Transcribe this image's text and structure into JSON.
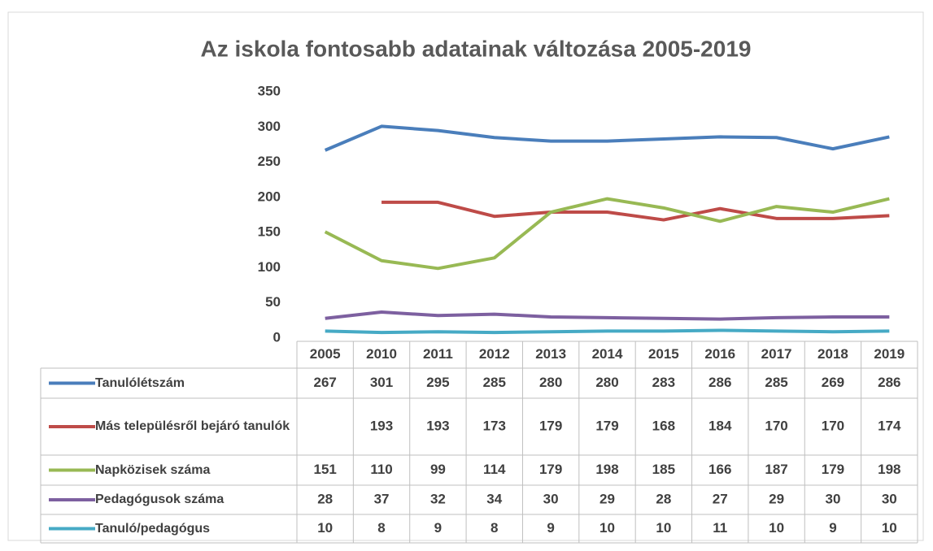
{
  "chart_data": {
    "type": "line",
    "title": "Az iskola fontosabb adatainak változása 2005-2019",
    "categories": [
      "2005",
      "2010",
      "2011",
      "2012",
      "2013",
      "2014",
      "2015",
      "2016",
      "2017",
      "2018",
      "2019"
    ],
    "series": [
      {
        "name": "Tanulólétszám",
        "color": "#4a7ebb",
        "values": [
          267,
          301,
          295,
          285,
          280,
          280,
          283,
          286,
          285,
          269,
          286
        ]
      },
      {
        "name": "Más településről bejáró tanulók",
        "color": "#be4b48",
        "values": [
          null,
          193,
          193,
          173,
          179,
          179,
          168,
          184,
          170,
          170,
          174
        ]
      },
      {
        "name": "Napközisek száma",
        "color": "#98b954",
        "values": [
          151,
          110,
          99,
          114,
          179,
          198,
          185,
          166,
          187,
          179,
          198
        ]
      },
      {
        "name": "Pedagógusok száma",
        "color": "#7d60a0",
        "values": [
          28,
          37,
          32,
          34,
          30,
          29,
          28,
          27,
          29,
          30,
          30
        ]
      },
      {
        "name": "Tanuló/pedagógus",
        "color": "#46aac5",
        "values": [
          10,
          8,
          9,
          8,
          9,
          10,
          10,
          11,
          10,
          9,
          10
        ]
      }
    ],
    "ylim": [
      0,
      350
    ],
    "yticks": [
      0,
      50,
      100,
      150,
      200,
      250,
      300,
      350
    ],
    "grid": false,
    "data_table": true
  }
}
